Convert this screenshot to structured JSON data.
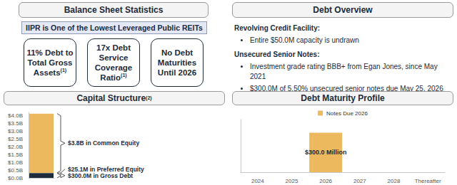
{
  "left_panel": {
    "header": "Balance Sheet Statistics",
    "banner": "IIPR is One of the Lowest Leveraged Public REITs",
    "stats": [
      {
        "text": "11% Debt to Total Gross Assets",
        "note": "(1)"
      },
      {
        "text": "17x Debt Service Coverage Ratio",
        "note": "(1)"
      },
      {
        "text": "No Debt Maturities Until 2026"
      }
    ]
  },
  "right_panel": {
    "header": "Debt Overview",
    "sections": [
      {
        "heading": "Revolving Credit Facility:",
        "bullets": [
          "Entire $50.0M capacity is undrawn"
        ]
      },
      {
        "heading": "Unsecured Senior Notes:",
        "bullets": [
          "Investment grade rating BBB+ from Egan Jones, since May 2021",
          "$300.0M of 5.50% unsecured senior notes due May 25, 2026"
        ]
      }
    ]
  },
  "chart_data": [
    {
      "type": "bar",
      "title": "Capital Structure",
      "title_note": "(2)",
      "stacked": true,
      "categories": [
        null
      ],
      "series": [
        {
          "color": "#1d2b3a",
          "values": [
            0.3
          ]
        },
        {
          "color": "#2b3b4c",
          "values": [
            0.0251
          ]
        },
        {
          "color": "#edb95e",
          "values": [
            3.8
          ]
        }
      ],
      "annotations": [
        "$300.0M in Gross Debt",
        "$25.1M in Preferred Equity",
        "$3.8B in Common Equity"
      ],
      "ylim": [
        0,
        4.2
      ],
      "yticks": [
        {
          "value": 0,
          "label": "$0.0B"
        },
        {
          "value": 0.5,
          "label": "$0.5B"
        },
        {
          "value": 1,
          "label": "$1.0B"
        },
        {
          "value": 1.5,
          "label": "$1.5B"
        },
        {
          "value": 2,
          "label": "$2.0B"
        },
        {
          "value": 2.5,
          "label": "$2.5B"
        },
        {
          "value": 3,
          "label": "$3.0B"
        },
        {
          "value": 3.5,
          "label": "$3.5B"
        },
        {
          "value": 4,
          "label": "$4.0B"
        }
      ],
      "grid": false,
      "tick_labels": "y"
    },
    {
      "type": "bar",
      "title": "Debt Maturity Profile",
      "categories": [
        "2024",
        "2025",
        "2026",
        "2027",
        "2028",
        "Thereafter"
      ],
      "series": [
        {
          "name": "Notes Due 2026",
          "color": "#edb95e",
          "values": [
            null,
            null,
            300,
            null,
            null,
            null
          ],
          "value_labels": [
            null,
            null,
            "$300.0 Million",
            null,
            null,
            null
          ]
        }
      ],
      "data_labels": true,
      "legend": "top",
      "ylim": [
        0,
        400
      ],
      "grid": false,
      "tick_labels": "x"
    }
  ]
}
